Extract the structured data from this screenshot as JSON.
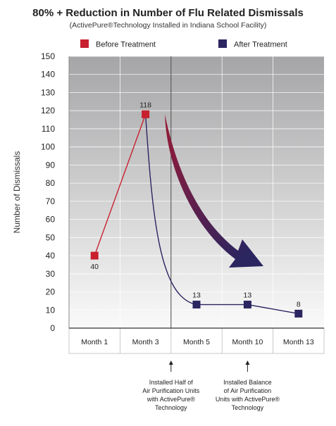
{
  "chart_data": {
    "type": "line",
    "title": "80% + Reduction in Number of Flu Related Dismissals",
    "subtitle": "(ActivePure®Technology Installed in Indiana School Facility)",
    "ylabel": "Number of Dismissals",
    "xlabel": "",
    "categories": [
      "Month 1",
      "Month 3",
      "Month 5",
      "Month 10",
      "Month 13"
    ],
    "ylim": [
      0,
      150
    ],
    "yticks": [
      0,
      10,
      20,
      30,
      40,
      50,
      60,
      70,
      80,
      90,
      100,
      110,
      120,
      130,
      140,
      150
    ],
    "grid": true,
    "legend_position": "top",
    "series": [
      {
        "name": "Before Treatment",
        "color": "#c8202f",
        "points": [
          {
            "category": "Month 1",
            "value": 40
          },
          {
            "category": "Month 3",
            "value": 118
          }
        ]
      },
      {
        "name": "After Treatment",
        "color": "#2b2560",
        "points": [
          {
            "category": "Month 5",
            "value": 13
          },
          {
            "category": "Month 10",
            "value": 13
          },
          {
            "category": "Month 13",
            "value": 8
          }
        ]
      }
    ],
    "annotations": [
      {
        "after_category": "Month 3",
        "lines": [
          "Installed Half of",
          "Air Purification Units",
          "with ActivePure®",
          "Technology"
        ]
      },
      {
        "after_category": "Month 5",
        "lines": [
          "Installed Balance",
          "of Air Purification",
          "Units with ActivePure®",
          "Technology"
        ]
      }
    ],
    "colors": {
      "arrow_start": "#9a1a35",
      "arrow_end": "#2b2560",
      "plot_top": "#a5a5a7",
      "plot_bottom": "#fafafa"
    }
  }
}
